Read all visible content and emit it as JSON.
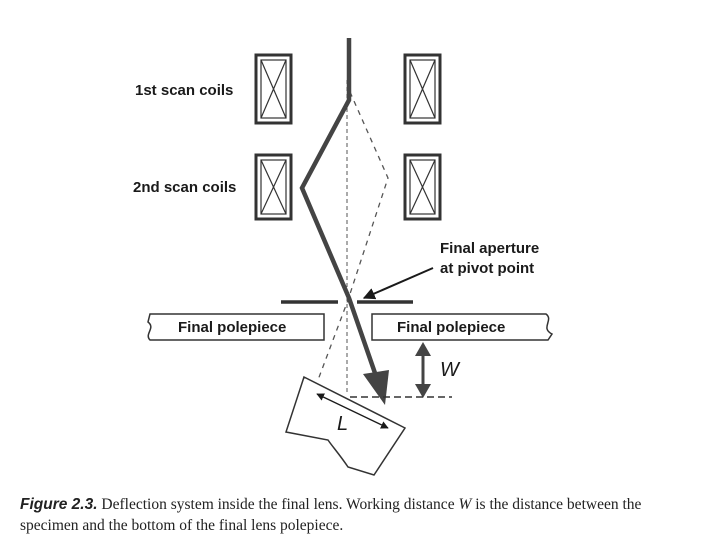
{
  "figure": {
    "labels": {
      "scan_coils_1": "1st scan coils",
      "scan_coils_2": "2nd scan coils",
      "aperture_line1": "Final aperture",
      "aperture_line2": "at pivot point",
      "polepiece_left": "Final polepiece",
      "polepiece_right": "Final polepiece",
      "working_distance": "W",
      "scan_length": "L"
    }
  },
  "caption": {
    "label": "Figure 2.3.",
    "text_part1": "Deflection system inside the final lens. Working distance ",
    "symbol": "W",
    "text_part2": " is the distance between the specimen and the bottom of the final lens polepiece."
  }
}
